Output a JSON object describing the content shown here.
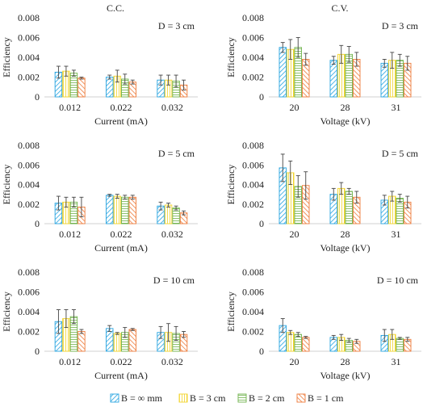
{
  "column_titles": [
    "C.C.",
    "C.V."
  ],
  "colors": {
    "B = ∞ mm": "#27a4e0",
    "B = 3 cm": "#f2d32a",
    "B = 2 cm": "#6fb34c",
    "B = 1 cm": "#ee7b3a"
  },
  "legend": [
    "B = ∞ mm",
    "B = 3 cm",
    "B = 2 cm",
    "B = 1 cm"
  ],
  "chart_data": [
    {
      "type": "bar",
      "panel": "C.C. D = 3 cm",
      "annotation": "D = 3 cm",
      "xlabel": "Current (mA)",
      "ylabel": "Efficiency",
      "categories": [
        "0.012",
        "0.022",
        "0.032"
      ],
      "ylim": [
        0,
        0.008
      ],
      "yticks": [
        "0",
        "0.002",
        "0.004",
        "0.006",
        "0.008"
      ],
      "series": [
        {
          "name": "B = ∞ mm",
          "values": [
            0.0025,
            0.002,
            0.0017
          ],
          "errors": [
            0.0006,
            0.0002,
            0.0005
          ]
        },
        {
          "name": "B = 3 cm",
          "values": [
            0.0026,
            0.0021,
            0.0017
          ],
          "errors": [
            0.0005,
            0.0006,
            0.0005
          ]
        },
        {
          "name": "B = 2 cm",
          "values": [
            0.0024,
            0.0018,
            0.0016
          ],
          "errors": [
            0.0003,
            0.0005,
            0.0006
          ]
        },
        {
          "name": "B = 1 cm",
          "values": [
            0.0019,
            0.0015,
            0.0012
          ],
          "errors": [
            0.0001,
            0.0002,
            0.0005
          ]
        }
      ]
    },
    {
      "type": "bar",
      "panel": "C.V. D = 3 cm",
      "annotation": "D = 3 cm",
      "xlabel": "Voltage (kV)",
      "ylabel": "Efficiency",
      "categories": [
        "20",
        "28",
        "31"
      ],
      "ylim": [
        0,
        0.008
      ],
      "yticks": [
        "0",
        "0.002",
        "0.004",
        "0.006",
        "0.008"
      ],
      "series": [
        {
          "name": "B = ∞ mm",
          "values": [
            0.005,
            0.0037,
            0.0034
          ],
          "errors": [
            0.0005,
            0.0004,
            0.0004
          ]
        },
        {
          "name": "B = 3 cm",
          "values": [
            0.0048,
            0.0043,
            0.0037
          ],
          "errors": [
            0.001,
            0.0009,
            0.0008
          ]
        },
        {
          "name": "B = 2 cm",
          "values": [
            0.005,
            0.0043,
            0.0037
          ],
          "errors": [
            0.001,
            0.0008,
            0.0006
          ]
        },
        {
          "name": "B = 1 cm",
          "values": [
            0.0038,
            0.0038,
            0.0034
          ],
          "errors": [
            0.0006,
            0.0007,
            0.0007
          ]
        }
      ]
    },
    {
      "type": "bar",
      "panel": "C.C. D = 5 cm",
      "annotation": "D = 5 cm",
      "xlabel": "Current (mA)",
      "ylabel": "Efficiency",
      "categories": [
        "0.012",
        "0.022",
        "0.032"
      ],
      "ylim": [
        0,
        0.008
      ],
      "yticks": [
        "0",
        "0.002",
        "0.004",
        "0.006",
        "0.008"
      ],
      "series": [
        {
          "name": "B = ∞ mm",
          "values": [
            0.0021,
            0.0029,
            0.0018
          ],
          "errors": [
            0.0007,
            0.0001,
            0.0004
          ]
        },
        {
          "name": "B = 3 cm",
          "values": [
            0.0022,
            0.0028,
            0.0019
          ],
          "errors": [
            0.0005,
            0.0002,
            0.0002
          ]
        },
        {
          "name": "B = 2 cm",
          "values": [
            0.0022,
            0.0027,
            0.0016
          ],
          "errors": [
            0.0005,
            0.0002,
            0.0002
          ]
        },
        {
          "name": "B = 1 cm",
          "values": [
            0.0017,
            0.0027,
            0.0011
          ],
          "errors": [
            0.001,
            0.0002,
            0.0002
          ]
        }
      ]
    },
    {
      "type": "bar",
      "panel": "C.V. D = 5 cm",
      "annotation": "D = 5 cm",
      "xlabel": "Voltage (kV)",
      "ylabel": "Efficiency",
      "categories": [
        "20",
        "28",
        "31"
      ],
      "ylim": [
        0,
        0.008
      ],
      "yticks": [
        "0",
        "0.002",
        "0.004",
        "0.006",
        "0.008"
      ],
      "series": [
        {
          "name": "B = ∞ mm",
          "values": [
            0.0057,
            0.003,
            0.0024
          ],
          "errors": [
            0.0014,
            0.0006,
            0.0005
          ]
        },
        {
          "name": "B = 3 cm",
          "values": [
            0.0052,
            0.0036,
            0.0028
          ],
          "errors": [
            0.0012,
            0.0006,
            0.0005
          ]
        },
        {
          "name": "B = 2 cm",
          "values": [
            0.0038,
            0.0033,
            0.0026
          ],
          "errors": [
            0.0011,
            0.0003,
            0.0004
          ]
        },
        {
          "name": "B = 1 cm",
          "values": [
            0.0039,
            0.0027,
            0.0022
          ],
          "errors": [
            0.0014,
            0.0006,
            0.0006
          ]
        }
      ]
    },
    {
      "type": "bar",
      "panel": "C.C. D = 10 cm",
      "annotation": "D = 10 cm",
      "xlabel": "Current (mA)",
      "ylabel": "Efficiency",
      "categories": [
        "0.012",
        "0.022",
        "0.032"
      ],
      "ylim": [
        0,
        0.008
      ],
      "yticks": [
        "0",
        "0.002",
        "0.004",
        "0.006",
        "0.008"
      ],
      "series": [
        {
          "name": "B = ∞ mm",
          "values": [
            0.003,
            0.0023,
            0.0019
          ],
          "errors": [
            0.0012,
            0.0003,
            0.0006
          ]
        },
        {
          "name": "B = 3 cm",
          "values": [
            0.0033,
            0.0018,
            0.0019
          ],
          "errors": [
            0.0009,
            0.0001,
            0.0009
          ]
        },
        {
          "name": "B = 2 cm",
          "values": [
            0.0035,
            0.0019,
            0.0018
          ],
          "errors": [
            0.0007,
            0.0005,
            0.0007
          ]
        },
        {
          "name": "B = 1 cm",
          "values": [
            0.002,
            0.0022,
            0.0017
          ],
          "errors": [
            0.0002,
            0.0001,
            0.0003
          ]
        }
      ]
    },
    {
      "type": "bar",
      "panel": "C.V. D = 10 cm",
      "annotation": "D = 10 cm",
      "xlabel": "Voltage (kV)",
      "ylabel": "Efficiency",
      "categories": [
        "20",
        "28",
        "31"
      ],
      "ylim": [
        0,
        0.008
      ],
      "yticks": [
        "0",
        "0.002",
        "0.004",
        "0.006",
        "0.008"
      ],
      "series": [
        {
          "name": "B = ∞ mm",
          "values": [
            0.0026,
            0.0014,
            0.0016
          ],
          "errors": [
            0.0007,
            0.0002,
            0.0006
          ]
        },
        {
          "name": "B = 3 cm",
          "values": [
            0.0019,
            0.0014,
            0.0017
          ],
          "errors": [
            0.0002,
            0.0003,
            0.0005
          ]
        },
        {
          "name": "B = 2 cm",
          "values": [
            0.0017,
            0.0011,
            0.0013
          ],
          "errors": [
            0.0002,
            0.0002,
            0.0001
          ]
        },
        {
          "name": "B = 1 cm",
          "values": [
            0.0014,
            0.001,
            0.0012
          ],
          "errors": [
            0.0001,
            0.0002,
            0.0002
          ]
        }
      ]
    }
  ]
}
